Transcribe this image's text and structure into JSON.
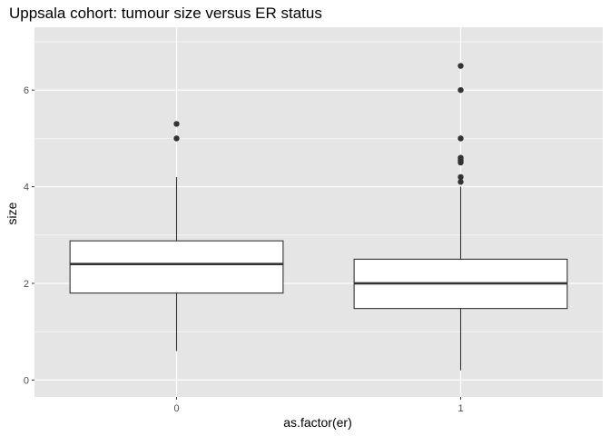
{
  "chart_data": {
    "type": "boxplot",
    "title": "Uppsala cohort: tumour size versus ER status",
    "xlabel": "as.factor(er)",
    "ylabel": "size",
    "categories": [
      "0",
      "1"
    ],
    "ylim": [
      -0.35,
      7.3
    ],
    "yticks": [
      0,
      2,
      4,
      6
    ],
    "grid": true,
    "colors": {
      "panel_background": "#e5e5e5",
      "grid": "#ffffff",
      "box_fill": "#ffffff",
      "box_line": "#333333"
    },
    "boxes": [
      {
        "category": "0",
        "whisker_low": 0.6,
        "q1": 1.8,
        "median": 2.4,
        "q3": 2.88,
        "whisker_high": 4.2,
        "outliers": [
          5.0,
          5.3
        ]
      },
      {
        "category": "1",
        "whisker_low": 0.2,
        "q1": 1.48,
        "median": 2.0,
        "q3": 2.5,
        "whisker_high": 4.0,
        "outliers": [
          4.1,
          4.2,
          4.5,
          4.55,
          4.6,
          5.0,
          6.0,
          6.5
        ]
      }
    ]
  }
}
